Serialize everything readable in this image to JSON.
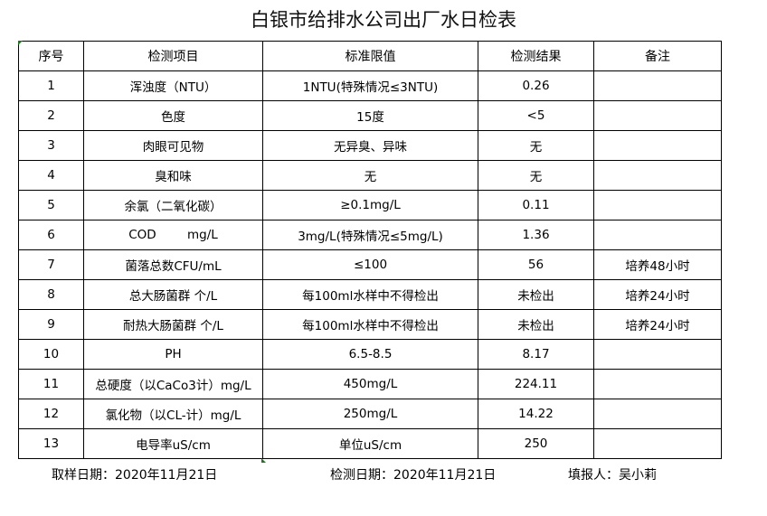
{
  "title": "白银市给排水公司出厂水日检表",
  "headers": [
    "序号",
    "检测项目",
    "标准限值",
    "检测结果",
    "备注"
  ],
  "rows": [
    [
      "1",
      "浑浊度（NTU）",
      "1NTU(特殊情况≤3NTU)",
      "0.26",
      ""
    ],
    [
      "2",
      "色度",
      "15度",
      "<5",
      ""
    ],
    [
      "3",
      "肉眼可见物",
      "无异臭、异味",
      "无",
      ""
    ],
    [
      "4",
      "臭和味",
      "无",
      "无",
      ""
    ],
    [
      "5",
      "余氯（二氧化碳）",
      "≥0.1mg/L",
      "0.11",
      ""
    ],
    [
      "6",
      "COD        mg/L",
      "3mg/L(特殊情况≤5mg/L)",
      "1.36",
      ""
    ],
    [
      "7",
      "菌落总数CFU/mL",
      "≤100",
      "56",
      "培养48小时"
    ],
    [
      "8",
      "总大肠菌群 个/L",
      "每100ml水样中不得检出",
      "未检出",
      "培养24小时"
    ],
    [
      "9",
      "耐热大肠菌群 个/L",
      "每100ml水样中不得检出",
      "未检出",
      "培养24小时"
    ],
    [
      "10",
      "PH",
      "6.5-8.5",
      "8.17",
      ""
    ],
    [
      "11",
      "总硬度（以CaCo3计）mg/L",
      "450mg/L",
      "224.11",
      ""
    ],
    [
      "12",
      "氯化物（以CL-计）mg/L",
      "250mg/L",
      "14.22",
      ""
    ],
    [
      "13",
      "电导率uS/cm",
      "单位uS/cm",
      "250",
      ""
    ]
  ],
  "footer": {
    "sample_date": "取样日期：2020年11月21日",
    "test_date": "检测日期：2020年11月21日",
    "reporter": "填报人：吴小莉"
  }
}
